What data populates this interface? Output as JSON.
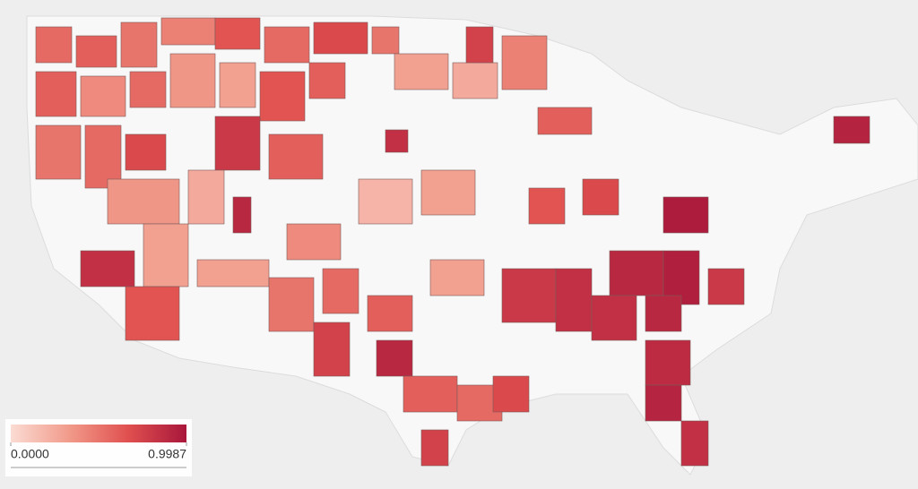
{
  "map": {
    "legend": {
      "min": {
        "value": 0,
        "label": "0.0000"
      },
      "max": {
        "value": 0.9987,
        "label": "0.9987"
      },
      "colors": [
        "#fbdcd3",
        "#f19a8a",
        "#e0504f",
        "#a8173b"
      ]
    },
    "regions": {
      "values": [
        0.55,
        0.6,
        0.5,
        0.45,
        0.65,
        0.55,
        0.7,
        0.5,
        0.6,
        0.4,
        0.55,
        0.35,
        0.3,
        0.65,
        0.6,
        0.3,
        0.25,
        0.45,
        0.75,
        0.85,
        0.5,
        0.55,
        0.7,
        0.8,
        0.6,
        0.35,
        0.3,
        0.25,
        0.2,
        0.3,
        0.9,
        0.4,
        0.85,
        0.3,
        0.5,
        0.55,
        0.6,
        0.65,
        0.75,
        0.9,
        0.6,
        0.55,
        0.7,
        0.8,
        0.85,
        0.9,
        0.95,
        0.9,
        0.85,
        0.8,
        0.88,
        0.92,
        0.97,
        0.7,
        0.6,
        0.3,
        0.65,
        0.75,
        0.85,
        0.93
      ]
    }
  }
}
